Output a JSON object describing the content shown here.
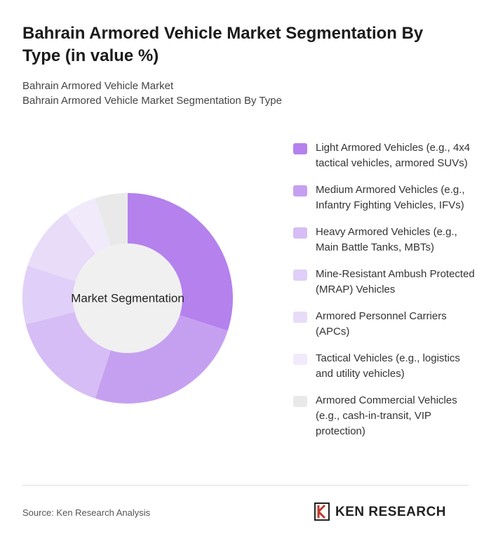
{
  "chart_data": {
    "type": "pie",
    "title": "Bahrain Armored Vehicle Market Segmentation By Type (in value %)",
    "subtitle": [
      "Bahrain Armored Vehicle Market",
      "Bahrain Armored Vehicle Market Segmentation By Type"
    ],
    "center_label": "Market Segmentation",
    "categories": [
      "Light Armored Vehicles (e.g., 4x4 tactical vehicles, armored SUVs)",
      "Medium Armored Vehicles (e.g., Infantry Fighting Vehicles, IFVs)",
      "Heavy Armored Vehicles (e.g., Main Battle Tanks, MBTs)",
      "Mine-Resistant Ambush Protected (MRAP) Vehicles",
      "Armored Personnel Carriers (APCs)",
      "Tactical Vehicles (e.g., logistics and utility vehicles)",
      "Armored Commercial Vehicles (e.g., cash-in-transit, VIP protection)"
    ],
    "values": [
      30,
      25,
      16,
      9,
      10,
      5,
      5
    ],
    "colors": [
      "#b481ed",
      "#c6a0f0",
      "#d6bdf5",
      "#e0cff8",
      "#e8dcf9",
      "#f1eafb",
      "#e9e9e9"
    ],
    "source": "Source: Ken Research Analysis",
    "brand": "KEN RESEARCH"
  }
}
